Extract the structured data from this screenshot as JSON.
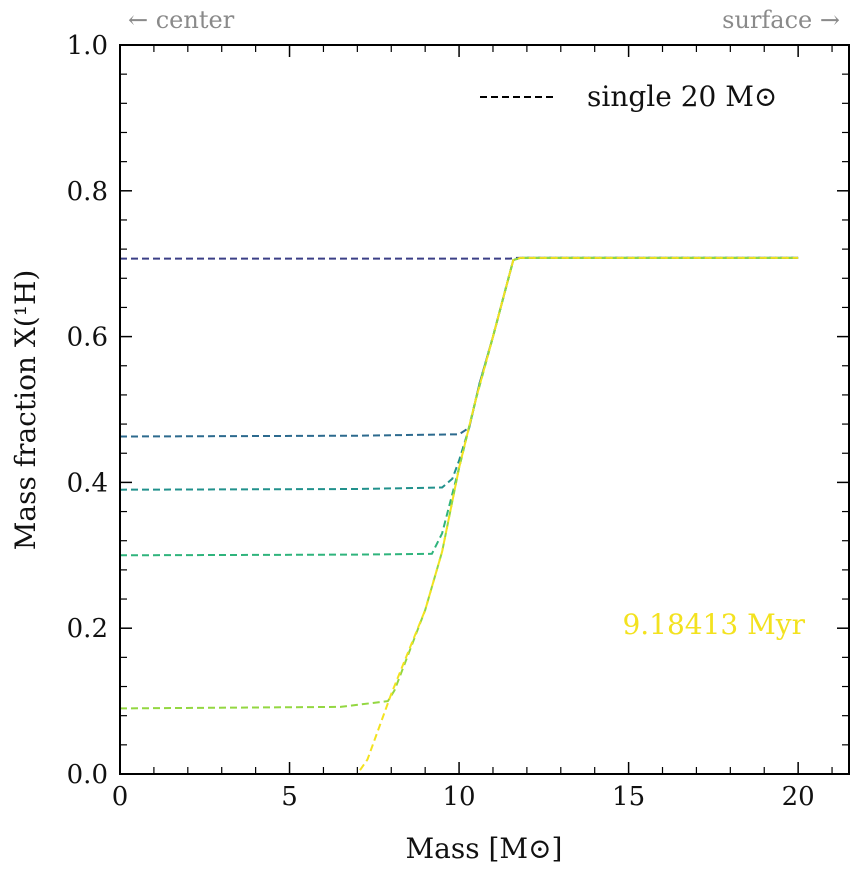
{
  "header": {
    "left_note": "← center",
    "right_note": "surface →"
  },
  "chart_data": {
    "type": "line",
    "xlabel": "Mass [M⊙]",
    "ylabel": "Mass fraction X(¹H)",
    "xlim": [
      0,
      21.5
    ],
    "ylim": [
      0,
      1.0
    ],
    "xticks": [
      0,
      5,
      10,
      15,
      20
    ],
    "xtick_labels": [
      "0",
      "5",
      "10",
      "15",
      "20"
    ],
    "yticks": [
      0,
      0.2,
      0.4,
      0.6,
      0.8,
      1.0
    ],
    "ytick_labels": [
      "0.0",
      "0.2",
      "0.4",
      "0.6",
      "0.8",
      "1.0"
    ],
    "grid": false,
    "legend": {
      "position": "top-right",
      "entries": [
        {
          "label": "single 20 M⊙",
          "style": "dashed",
          "color": "#000000"
        }
      ]
    },
    "annotation": {
      "text": "9.18413 Myr",
      "color": "#f3e21f"
    },
    "series": [
      {
        "color": "#3b3f86",
        "x": [
          0,
          7,
          10,
          11.5,
          11.7,
          20
        ],
        "y": [
          0.707,
          0.707,
          0.707,
          0.707,
          0.708,
          0.708
        ]
      },
      {
        "color": "#2c6a8e",
        "x": [
          0,
          7,
          10.0,
          10.3,
          10.6,
          11.0,
          11.4,
          11.6,
          11.8,
          20
        ],
        "y": [
          0.463,
          0.464,
          0.466,
          0.475,
          0.535,
          0.6,
          0.67,
          0.705,
          0.708,
          0.708
        ]
      },
      {
        "color": "#21918c",
        "x": [
          0,
          7,
          9.5,
          9.8,
          10.0,
          10.3,
          10.6,
          11.0,
          11.4,
          11.6,
          11.8,
          20
        ],
        "y": [
          0.39,
          0.391,
          0.393,
          0.405,
          0.43,
          0.475,
          0.535,
          0.6,
          0.67,
          0.705,
          0.708,
          0.708
        ]
      },
      {
        "color": "#2fb47c",
        "x": [
          0,
          7,
          9.2,
          9.5,
          10.0,
          10.5,
          11.0,
          11.4,
          11.6,
          11.8,
          20
        ],
        "y": [
          0.3,
          0.301,
          0.302,
          0.33,
          0.42,
          0.515,
          0.6,
          0.67,
          0.705,
          0.708,
          0.708
        ]
      },
      {
        "color": "#93d741",
        "x": [
          0,
          6.5,
          7.9,
          8.1,
          9.0,
          9.5,
          10.0,
          10.5,
          11.0,
          11.4,
          11.6,
          11.8,
          20
        ],
        "y": [
          0.09,
          0.092,
          0.1,
          0.115,
          0.225,
          0.305,
          0.42,
          0.515,
          0.6,
          0.67,
          0.705,
          0.708,
          0.708
        ]
      },
      {
        "color": "#f3e21f",
        "x": [
          0,
          7.0,
          7.3,
          8.0,
          9.0,
          9.5,
          10.0,
          10.5,
          11.0,
          11.4,
          11.6,
          11.8,
          20
        ],
        "y": [
          0.0,
          0.0,
          0.02,
          0.11,
          0.225,
          0.305,
          0.42,
          0.515,
          0.6,
          0.67,
          0.705,
          0.708,
          0.708
        ]
      }
    ]
  }
}
